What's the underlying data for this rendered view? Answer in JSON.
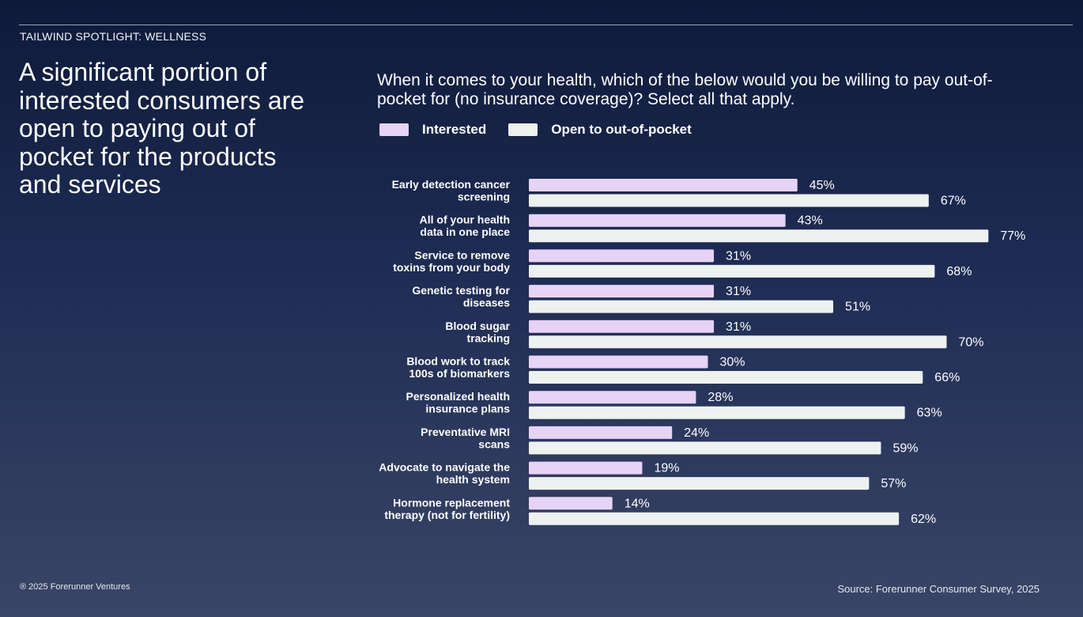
{
  "header": {
    "eyebrow": "TAILWIND SPOTLIGHT: WELLNESS",
    "headline": "A significant portion of interested consumers are open to paying out of pocket for the products and services"
  },
  "footer": {
    "copyright": "® 2025 Forerunner Ventures",
    "source": "Source: Forerunner Consumer Survey, 2025"
  },
  "colors": {
    "interested": "#e6d3f5",
    "open": "#edf1f0",
    "background_top": "#0e1a3a",
    "background_bottom": "#3a4566"
  },
  "chart_data": {
    "type": "bar",
    "orientation": "horizontal",
    "title": "When it comes to your health, which of the below would you be willing to pay out-of-pocket for (no insurance coverage)? Select all that apply.",
    "legend_position": "top-left",
    "grid": false,
    "xlim": [
      0,
      100
    ],
    "categories": [
      [
        "Early detection cancer",
        "screening"
      ],
      [
        "All of your health",
        "data in one place"
      ],
      [
        "Service to remove",
        "toxins from your body"
      ],
      [
        "Genetic testing for",
        "diseases"
      ],
      [
        "Blood sugar",
        "tracking"
      ],
      [
        "Blood work to track",
        "100s of biomarkers"
      ],
      [
        "Personalized health",
        "insurance plans"
      ],
      [
        "Preventative MRI",
        "scans"
      ],
      [
        "Advocate to navigate the",
        "health system"
      ],
      [
        "Hormone replacement",
        "therapy (not for fertility)"
      ]
    ],
    "series": [
      {
        "name": "Interested",
        "values": [
          45,
          43,
          31,
          31,
          31,
          30,
          28,
          24,
          19,
          14
        ],
        "labels": [
          "45%",
          "43%",
          "31%",
          "31%",
          "31%",
          "30%",
          "28%",
          "24%",
          "19%",
          "14%"
        ]
      },
      {
        "name": "Open to out-of-pocket",
        "values": [
          67,
          77,
          68,
          51,
          70,
          66,
          63,
          59,
          57,
          62
        ],
        "labels": [
          "67%",
          "77%",
          "68%",
          "51%",
          "70%",
          "66%",
          "63%",
          "59%",
          "57%",
          "62%"
        ]
      }
    ]
  }
}
